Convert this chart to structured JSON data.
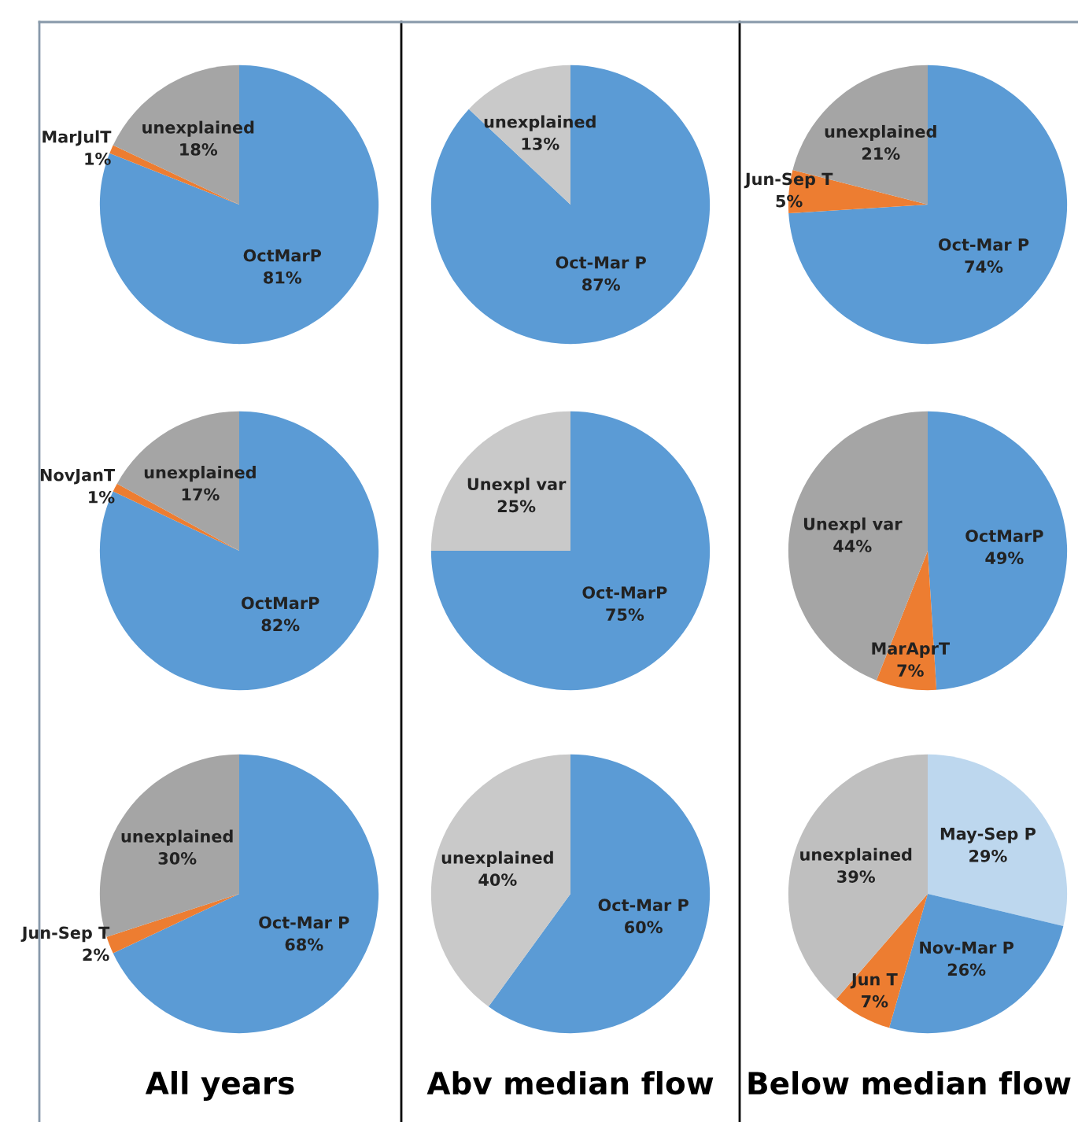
{
  "chart_data": [
    {
      "type": "pie",
      "categories": [
        "OctMarP",
        "MarJulT",
        "unexplained"
      ],
      "values": [
        81,
        1,
        18
      ],
      "value_labels": [
        "81%",
        "1%",
        "18%"
      ],
      "colors": [
        "#5b9bd5",
        "#ed7d31",
        "#a5a5a5"
      ]
    },
    {
      "type": "pie",
      "categories": [
        "Oct-Mar P",
        "unexplained"
      ],
      "values": [
        87,
        13
      ],
      "value_labels": [
        "87%",
        "13%"
      ],
      "colors": [
        "#5b9bd5",
        "#c9c9c9"
      ]
    },
    {
      "type": "pie",
      "categories": [
        "Oct-Mar P",
        "Jun-Sep T",
        "unexplained"
      ],
      "values": [
        74,
        5,
        21
      ],
      "value_labels": [
        "74%",
        "5%",
        "21%"
      ],
      "colors": [
        "#5b9bd5",
        "#ed7d31",
        "#a5a5a5"
      ]
    },
    {
      "type": "pie",
      "categories": [
        "OctMarP",
        "NovJanT",
        "unexplained"
      ],
      "values": [
        82,
        1,
        17
      ],
      "value_labels": [
        "82%",
        "1%",
        "17%"
      ],
      "colors": [
        "#5b9bd5",
        "#ed7d31",
        "#a5a5a5"
      ]
    },
    {
      "type": "pie",
      "categories": [
        "Oct-MarP",
        "Unexpl var"
      ],
      "values": [
        75,
        25
      ],
      "value_labels": [
        "75%",
        "25%"
      ],
      "colors": [
        "#5b9bd5",
        "#c9c9c9"
      ]
    },
    {
      "type": "pie",
      "categories": [
        "OctMarP",
        "MarAprT",
        "Unexpl var"
      ],
      "values": [
        49,
        7,
        44
      ],
      "value_labels": [
        "49%",
        "7%",
        "44%"
      ],
      "colors": [
        "#5b9bd5",
        "#ed7d31",
        "#a5a5a5"
      ]
    },
    {
      "type": "pie",
      "xlabel": "All years",
      "categories": [
        "Oct-Mar P",
        "Jun-Sep T",
        "unexplained"
      ],
      "values": [
        68,
        2,
        30
      ],
      "value_labels": [
        "68%",
        "2%",
        "30%"
      ],
      "colors": [
        "#5b9bd5",
        "#ed7d31",
        "#a5a5a5"
      ]
    },
    {
      "type": "pie",
      "xlabel": "Abv median flow",
      "categories": [
        "Oct-Mar P",
        "unexplained"
      ],
      "values": [
        60,
        40
      ],
      "value_labels": [
        "60%",
        "40%"
      ],
      "colors": [
        "#5b9bd5",
        "#c9c9c9"
      ]
    },
    {
      "type": "pie",
      "xlabel": "Below median flow",
      "categories": [
        "May-Sep P",
        "Nov-Mar P",
        "Jun T",
        "unexplained"
      ],
      "values": [
        29,
        26,
        7,
        39
      ],
      "value_labels": [
        "29%",
        "26%",
        "7%",
        "39%"
      ],
      "colors": [
        "#bdd7ee",
        "#5b9bd5",
        "#ed7d31",
        "#bfbfbf"
      ]
    }
  ]
}
